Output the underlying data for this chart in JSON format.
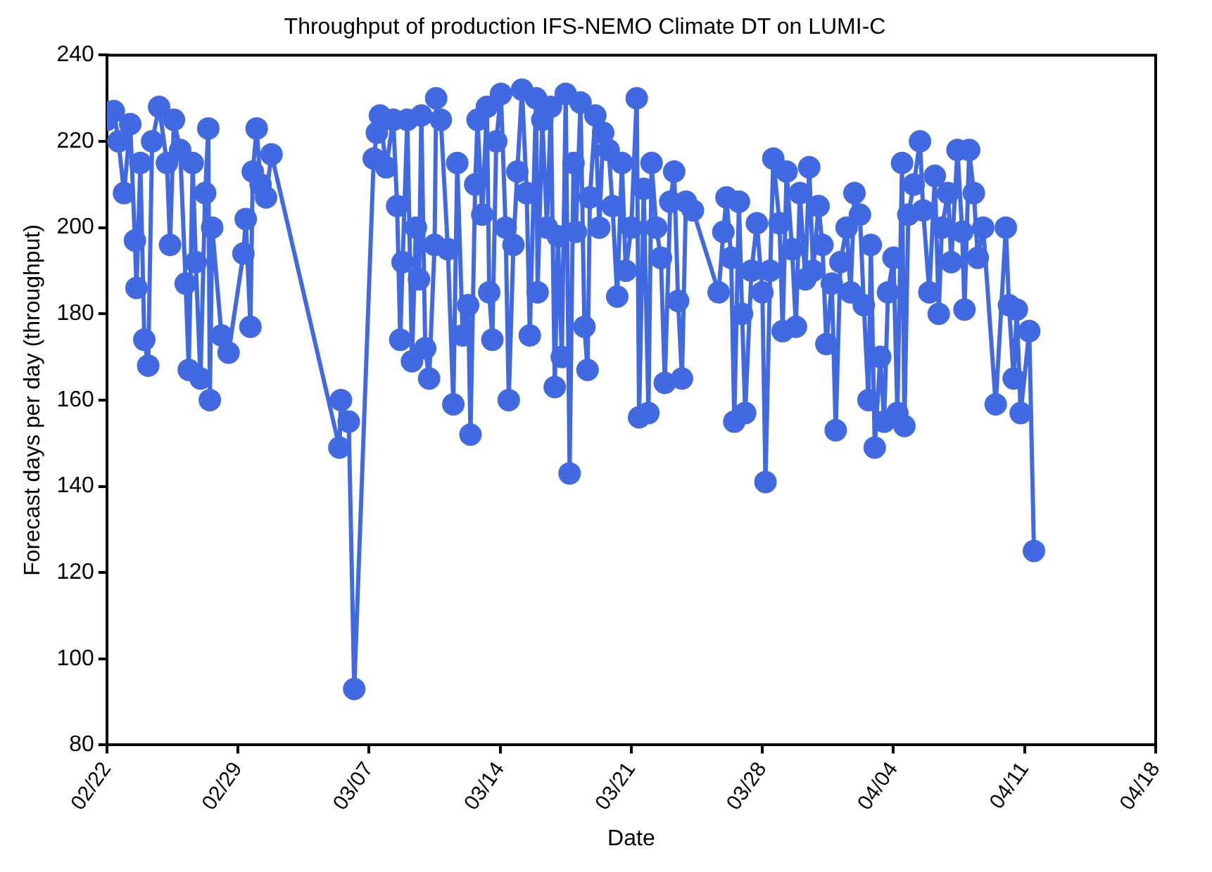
{
  "chart_data": {
    "type": "line",
    "title": "Throughput of production IFS-NEMO Climate DT on LUMI-C",
    "xlabel": "Date",
    "ylabel": "Forecast days per day (throughput)",
    "xlim": [
      "--02-22",
      "--04-18"
    ],
    "xticks": [
      {
        "value": "--02-22",
        "label": "02/22"
      },
      {
        "value": "--02-29",
        "label": "02/29"
      },
      {
        "value": "--03-07",
        "label": "03/07"
      },
      {
        "value": "--03-14",
        "label": "03/14"
      },
      {
        "value": "--03-21",
        "label": "03/21"
      },
      {
        "value": "--03-28",
        "label": "03/28"
      },
      {
        "value": "--04-04",
        "label": "04/04"
      },
      {
        "value": "--04-11",
        "label": "04/11"
      },
      {
        "value": "--04-18",
        "label": "04/18"
      }
    ],
    "ylim": [
      80,
      240
    ],
    "yticks": [
      80,
      100,
      120,
      140,
      160,
      180,
      200,
      220,
      240
    ],
    "grid": false,
    "legend": false,
    "marker": "circle",
    "line_style": "solid",
    "series": [
      {
        "color": "#4169e1",
        "x": [
          "--02-22T00:00",
          "--02-22T09:00",
          "--02-22T15:00",
          "--02-22T22:00",
          "--02-23T06:00",
          "--02-23T12:00",
          "--02-23T14:00",
          "--02-23T19:00",
          "--02-24T00:00",
          "--02-24T05:00",
          "--02-24T10:00",
          "--02-24T19:00",
          "--02-25T05:00",
          "--02-25T09:00",
          "--02-25T14:00",
          "--02-25T22:00",
          "--02-26T05:00",
          "--02-26T09:00",
          "--02-26T14:00",
          "--02-26T18:00",
          "--02-27T00:00",
          "--02-27T06:00",
          "--02-27T10:00",
          "--02-27T12:00",
          "--02-27T15:00",
          "--02-28T03:00",
          "--02-28T12:00",
          "--02-29T07:00",
          "--02-29T10:00",
          "--02-29T16:00",
          "--02-29T19:00",
          "--03-01T00:00",
          "--03-01T05:00",
          "--03-01T12:00",
          "--03-01T19:00",
          "--03-05T10:00",
          "--03-05T12:00",
          "--03-05T22:00",
          "--03-06T05:00",
          "--03-07T06:00",
          "--03-07T10:00",
          "--03-07T14:00",
          "--03-07T22:00",
          "--03-08T07:00",
          "--03-08T12:00",
          "--03-08T16:00",
          "--03-08T19:00",
          "--03-09T01:00",
          "--03-09T07:00",
          "--03-09T12:00",
          "--03-09T16:00",
          "--03-09T19:00",
          "--03-10T00:00",
          "--03-10T05:00",
          "--03-10T12:00",
          "--03-10T14:00",
          "--03-10T20:00",
          "--03-11T05:00",
          "--03-11T12:00",
          "--03-11T17:00",
          "--03-12T00:00",
          "--03-12T07:00",
          "--03-12T10:00",
          "--03-12T16:00",
          "--03-12T19:00",
          "--03-13T01:00",
          "--03-13T07:00",
          "--03-13T10:00",
          "--03-13T14:00",
          "--03-13T19:00",
          "--03-14T01:00",
          "--03-14T07:00",
          "--03-14T11:00",
          "--03-14T17:00",
          "--03-14T22:00",
          "--03-15T04:00",
          "--03-15T10:00",
          "--03-15T14:00",
          "--03-15T22:00",
          "--03-16T00:00",
          "--03-16T06:00",
          "--03-16T12:00",
          "--03-16T17:00",
          "--03-16T22:00",
          "--03-17T02:00",
          "--03-17T07:00",
          "--03-17T12:00",
          "--03-17T17:00",
          "--03-17T22:00",
          "--03-18T01:00",
          "--03-18T07:00",
          "--03-18T12:00",
          "--03-18T16:00",
          "--03-18T19:00",
          "--03-19T02:00",
          "--03-19T07:00",
          "--03-19T12:00",
          "--03-19T19:00",
          "--03-20T00:00",
          "--03-20T06:00",
          "--03-20T12:00",
          "--03-20T17:00",
          "--03-21T00:00",
          "--03-21T07:00",
          "--03-21T10:00",
          "--03-21T16:00",
          "--03-21T22:00",
          "--03-22T02:00",
          "--03-22T08:00",
          "--03-22T14:00",
          "--03-22T19:00",
          "--03-23T02:00",
          "--03-23T07:00",
          "--03-23T12:00",
          "--03-23T17:00",
          "--03-23T22:00",
          "--03-24T07:00",
          "--03-25T16:00",
          "--03-25T22:00",
          "--03-26T02:00",
          "--03-26T08:00",
          "--03-26T12:00",
          "--03-26T18:00",
          "--03-26T22:00",
          "--03-27T02:00",
          "--03-27T10:00",
          "--03-27T17:00",
          "--03-28T00:00",
          "--03-28T04:00",
          "--03-28T10:00",
          "--03-28T14:00",
          "--03-28T22:00",
          "--03-29T02:00",
          "--03-29T07:00",
          "--03-29T14:00",
          "--03-29T19:00",
          "--03-30T00:00",
          "--03-30T07:00",
          "--03-30T12:00",
          "--03-30T17:00",
          "--03-31T00:00",
          "--03-31T05:00",
          "--03-31T10:00",
          "--03-31T17:00",
          "--03-31T22:00",
          "--04-01T04:00",
          "--04-01T12:00",
          "--04-01T17:00",
          "--04-01T22:00",
          "--04-02T05:00",
          "--04-02T10:00",
          "--04-02T16:00",
          "--04-02T19:00",
          "--04-03T00:00",
          "--04-03T07:00",
          "--04-03T12:00",
          "--04-03T17:00",
          "--04-04T00:00",
          "--04-04T05:00",
          "--04-04T11:00",
          "--04-04T14:00",
          "--04-04T19:00",
          "--04-05T02:00",
          "--04-05T10:00",
          "--04-05T14:00",
          "--04-05T22:00",
          "--04-06T05:00",
          "--04-06T10:00",
          "--04-06T14:00",
          "--04-06T22:00",
          "--04-07T02:00",
          "--04-07T10:00",
          "--04-07T16:00",
          "--04-07T19:00",
          "--04-08T01:00",
          "--04-08T07:00",
          "--04-08T12:00",
          "--04-08T19:00",
          "--04-09T11:00",
          "--04-10T00:00",
          "--04-10T04:00",
          "--04-10T10:00",
          "--04-10T14:00",
          "--04-10T19:00",
          "--04-11T06:00",
          "--04-11T12:00"
        ],
        "values": [
          225,
          227,
          220,
          208,
          224,
          197,
          186,
          215,
          174,
          168,
          220,
          228,
          215,
          196,
          225,
          218,
          187,
          167,
          215,
          192,
          165,
          208,
          223,
          160,
          200,
          175,
          171,
          194,
          202,
          177,
          213,
          223,
          210,
          207,
          217,
          149,
          160,
          155,
          93,
          216,
          222,
          226,
          214,
          225,
          205,
          174,
          192,
          225,
          169,
          200,
          188,
          226,
          172,
          165,
          196,
          230,
          225,
          195,
          159,
          215,
          175,
          182,
          152,
          210,
          225,
          203,
          228,
          185,
          174,
          220,
          231,
          200,
          160,
          196,
          213,
          232,
          208,
          175,
          230,
          185,
          225,
          200,
          228,
          163,
          198,
          170,
          231,
          143,
          215,
          199,
          229,
          177,
          167,
          207,
          226,
          200,
          222,
          218,
          205,
          184,
          215,
          190,
          200,
          230,
          156,
          209,
          157,
          215,
          200,
          193,
          164,
          206,
          213,
          183,
          165,
          206,
          204,
          185,
          199,
          207,
          193,
          155,
          206,
          180,
          157,
          190,
          201,
          185,
          141,
          190,
          216,
          201,
          176,
          213,
          195,
          177,
          208,
          188,
          214,
          190,
          205,
          196,
          173,
          187,
          153,
          192,
          200,
          185,
          208,
          203,
          182,
          160,
          196,
          149,
          170,
          155,
          185,
          193,
          157,
          215,
          154,
          203,
          210,
          220,
          204,
          185,
          212,
          180,
          200,
          208,
          192,
          218,
          199,
          181,
          218,
          208,
          193,
          200,
          159,
          200,
          182,
          165,
          181,
          157,
          176,
          125
        ]
      }
    ]
  }
}
